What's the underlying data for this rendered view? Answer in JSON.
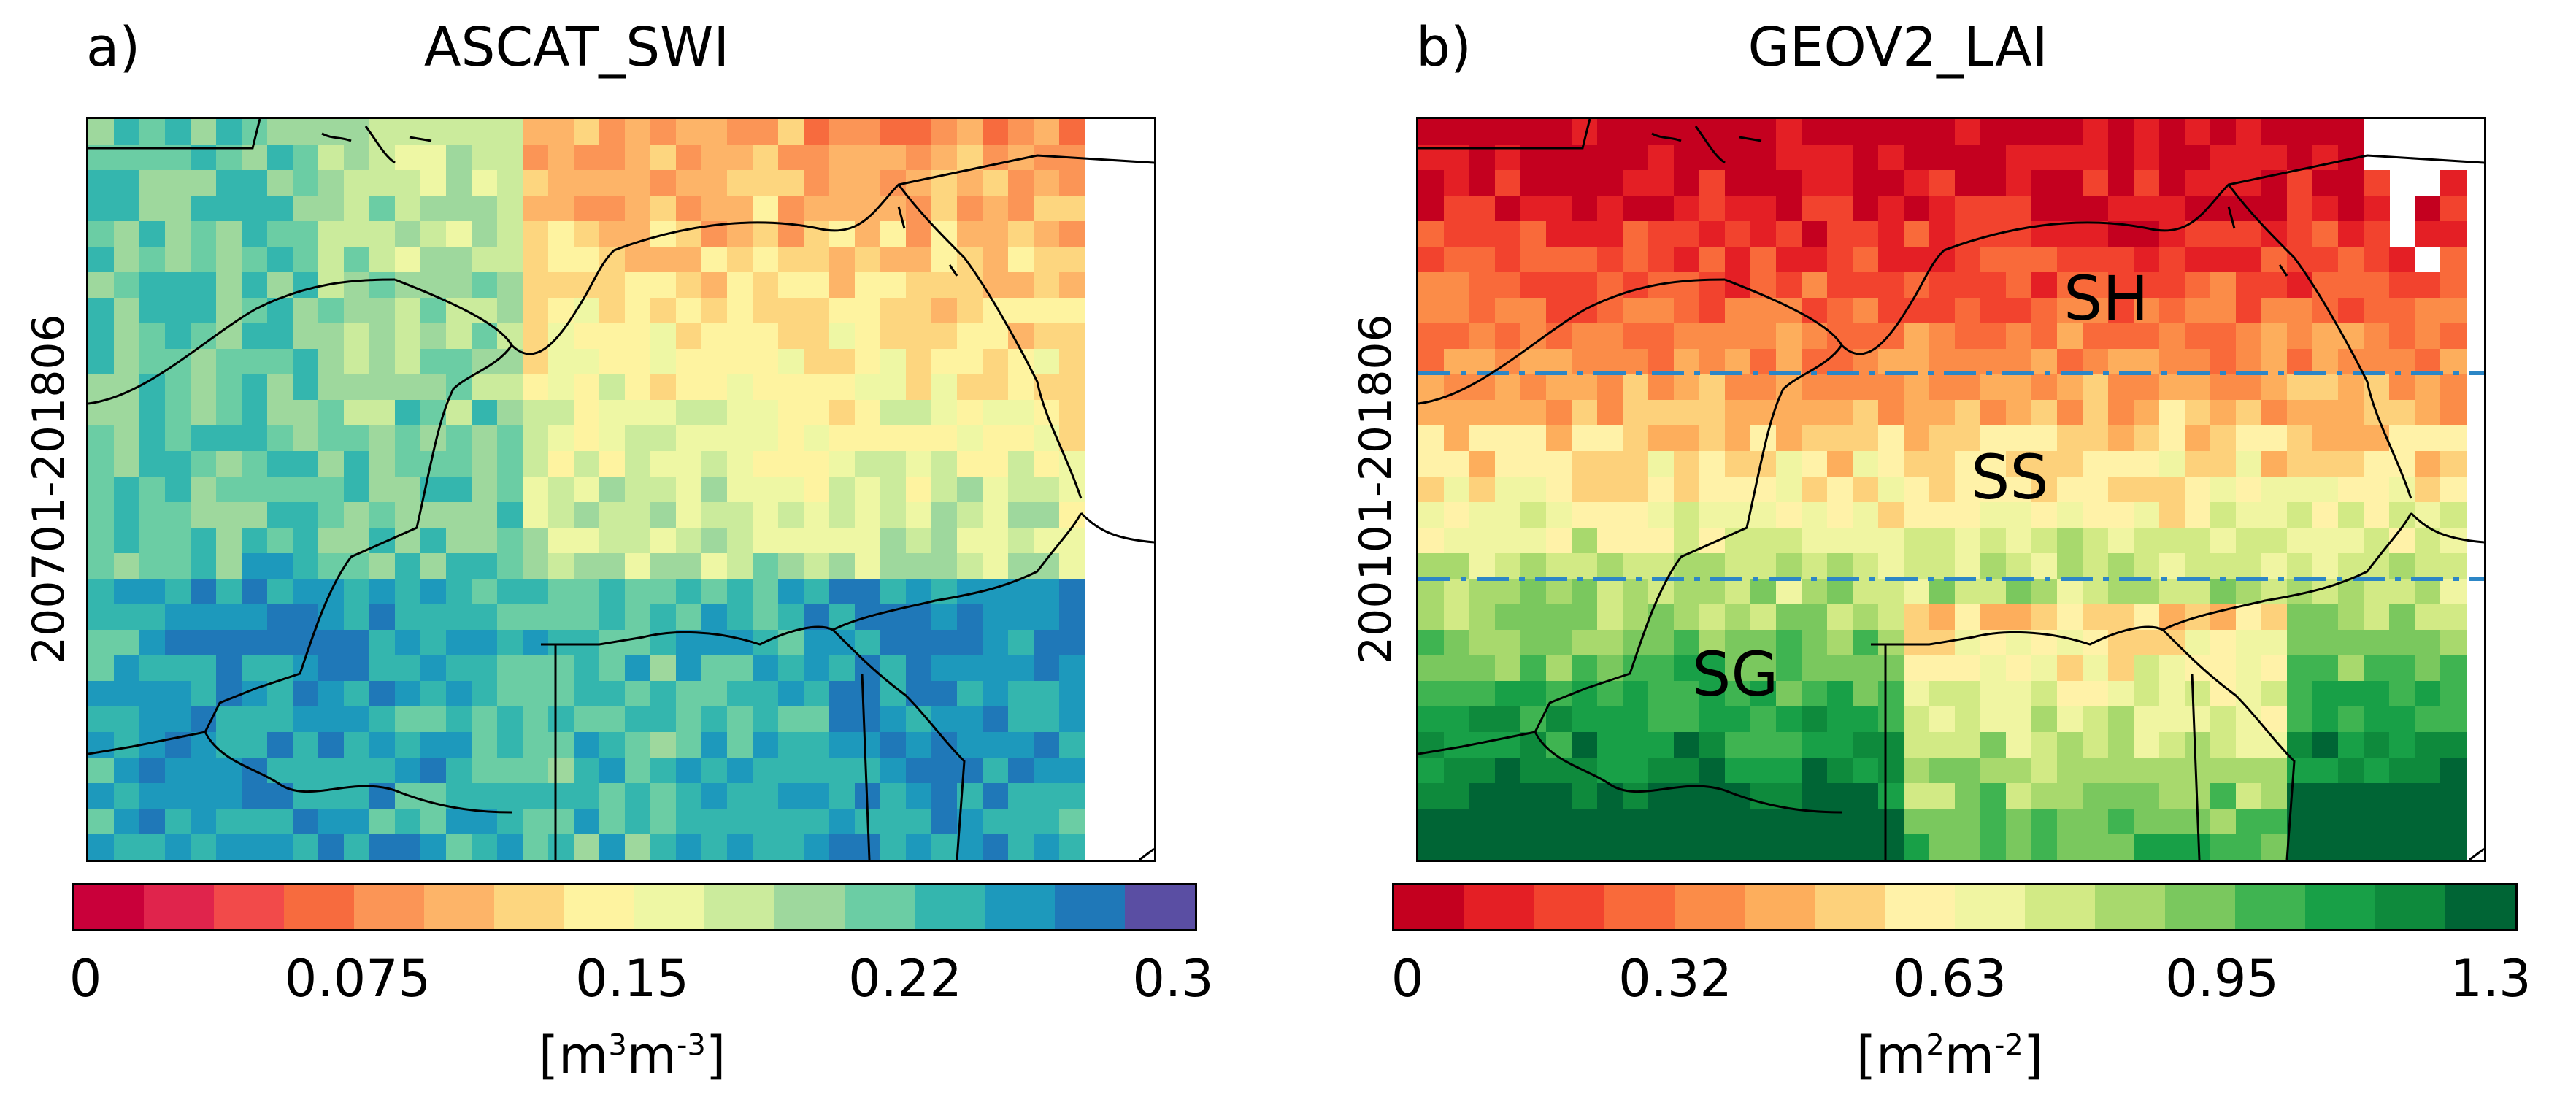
{
  "panels": [
    {
      "letter": "a)",
      "title": "ASCAT_SWI",
      "period": "200701-201806",
      "colorbar": {
        "colors": [
          "#c9003a",
          "#e0244c",
          "#f24a4a",
          "#f76b3e",
          "#fb9556",
          "#fdb468",
          "#fdd67f",
          "#fef3a0",
          "#eef7a4",
          "#cbeb9c",
          "#9ed89d",
          "#6bcda4",
          "#34b6ae",
          "#1d99bc",
          "#1f78b8",
          "#5a4ea3"
        ],
        "ticks": [
          "0",
          "0.075",
          "0.15",
          "0.22",
          "0.3"
        ],
        "unit": {
          "base1": "[m",
          "exp1": "3",
          "base2": "m",
          "exp2": "-3",
          "end": "]"
        }
      }
    },
    {
      "letter": "b)",
      "title": "GEOV2_LAI",
      "period": "200101-201806",
      "zones": [
        "SH",
        "SS",
        "SG"
      ],
      "colorbar": {
        "colors": [
          "#c4001f",
          "#e41f25",
          "#f2432e",
          "#f96a3a",
          "#fb8c48",
          "#fdae5c",
          "#fdd17b",
          "#fff2a8",
          "#f0f5a2",
          "#d2ea85",
          "#a8d96d",
          "#7ac85e",
          "#3fb451",
          "#18a047",
          "#0e8a3c",
          "#006535"
        ],
        "ticks": [
          "0",
          "0.32",
          "0.63",
          "0.95",
          "1.3"
        ],
        "unit": {
          "base1": "[m",
          "exp1": "2",
          "base2": "m",
          "exp2": "-2",
          "end": "]"
        }
      }
    }
  ]
}
